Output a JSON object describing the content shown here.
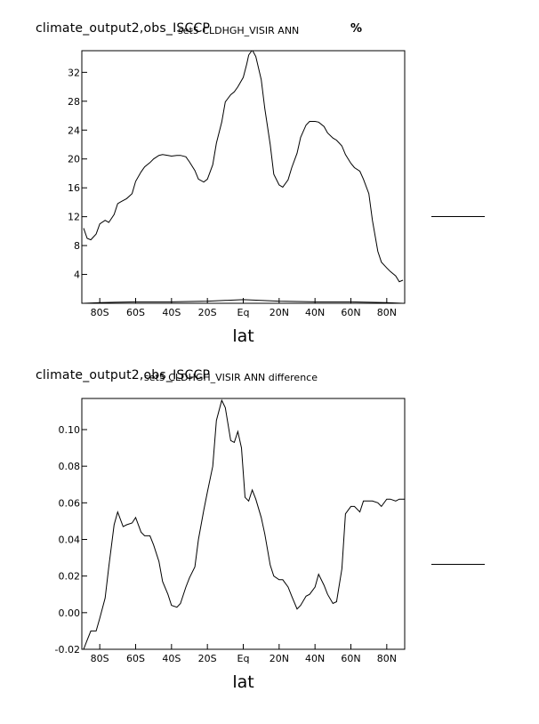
{
  "chart_data": [
    {
      "type": "line",
      "title": "climate_output2,obs_ISCCP",
      "subtitle": "set5 CLDHGH_VISIR ANN",
      "units": "%",
      "xlabel": "lat",
      "ylabel": "",
      "xlim": [
        -90,
        90
      ],
      "ylim": [
        0,
        35
      ],
      "xticks": [
        -80,
        -60,
        -40,
        -20,
        0,
        20,
        40,
        60,
        80
      ],
      "xtick_labels": [
        "80S",
        "60S",
        "40S",
        "20S",
        "Eq",
        "20N",
        "40N",
        "60N",
        "80N"
      ],
      "yticks": [
        4,
        8,
        12,
        16,
        20,
        24,
        28,
        32
      ],
      "ytick_labels": [
        "4",
        "8",
        "12",
        "16",
        "20",
        "24",
        "28",
        "32"
      ],
      "grid": false,
      "series": [
        {
          "name": "",
          "x": [
            -89,
            -87,
            -85,
            -82,
            -80,
            -77,
            -75,
            -72,
            -70,
            -68,
            -65,
            -62,
            -60,
            -57,
            -55,
            -52,
            -50,
            -47,
            -45,
            -42,
            -40,
            -37,
            -35,
            -32,
            -30,
            -27,
            -25,
            -22,
            -20,
            -17,
            -15,
            -12,
            -10,
            -7,
            -5,
            -3,
            0,
            2,
            3,
            5,
            7,
            10,
            12,
            15,
            17,
            20,
            22,
            25,
            27,
            30,
            32,
            35,
            37,
            40,
            42,
            45,
            47,
            50,
            52,
            55,
            57,
            60,
            62,
            65,
            67,
            70,
            72,
            75,
            77,
            80,
            82,
            85,
            87,
            89
          ],
          "y": [
            10.4,
            9.0,
            8.8,
            9.6,
            11.0,
            11.5,
            11.2,
            12.3,
            13.8,
            14.1,
            14.5,
            15.2,
            16.9,
            18.2,
            18.9,
            19.5,
            20.0,
            20.5,
            20.6,
            20.5,
            20.4,
            20.5,
            20.5,
            20.3,
            19.6,
            18.4,
            17.2,
            16.8,
            17.2,
            19.2,
            22.2,
            25.1,
            27.9,
            28.9,
            29.3,
            30.0,
            31.3,
            33.2,
            34.4,
            35.1,
            34.2,
            31.0,
            27.0,
            22.0,
            17.9,
            16.4,
            16.1,
            17.1,
            18.8,
            20.8,
            23.0,
            24.7,
            25.2,
            25.2,
            25.1,
            24.5,
            23.6,
            22.9,
            22.6,
            21.8,
            20.6,
            19.4,
            18.8,
            18.3,
            17.2,
            15.2,
            11.5,
            7.2,
            5.7,
            4.9,
            4.4,
            3.8,
            3.0,
            3.2
          ]
        },
        {
          "name": "",
          "x": [
            -89,
            -80,
            -60,
            -40,
            -20,
            0,
            20,
            40,
            60,
            80,
            89
          ],
          "y": [
            0.0,
            0.1,
            0.2,
            0.2,
            0.3,
            0.5,
            0.3,
            0.2,
            0.2,
            0.1,
            0.0
          ]
        }
      ]
    },
    {
      "type": "line",
      "title": "climate_output2,obs_ISCCP",
      "subtitle": "set5 CLDHGH_VISIR ANN difference",
      "xlabel": "lat",
      "ylabel": "",
      "xlim": [
        -90,
        90
      ],
      "ylim": [
        -0.02,
        0.117
      ],
      "xticks": [
        -80,
        -60,
        -40,
        -20,
        0,
        20,
        40,
        60,
        80
      ],
      "xtick_labels": [
        "80S",
        "60S",
        "40S",
        "20S",
        "Eq",
        "20N",
        "40N",
        "60N",
        "80N"
      ],
      "yticks": [
        -0.02,
        0.0,
        0.02,
        0.04,
        0.06,
        0.08,
        0.1
      ],
      "ytick_labels": [
        "-0.02",
        "0.00",
        "0.02",
        "0.04",
        "0.06",
        "0.08",
        "0.10"
      ],
      "grid": false,
      "series": [
        {
          "name": "",
          "x": [
            -90,
            -89,
            -87,
            -85,
            -82,
            -80,
            -77,
            -75,
            -72,
            -70,
            -67,
            -65,
            -62,
            -60,
            -57,
            -55,
            -52,
            -50,
            -47,
            -45,
            -42,
            -40,
            -37,
            -35,
            -32,
            -30,
            -27,
            -25,
            -22,
            -20,
            -17,
            -15,
            -12,
            -10,
            -7,
            -5,
            -3,
            -1,
            1,
            3,
            5,
            7,
            10,
            12,
            15,
            17,
            20,
            22,
            25,
            27,
            30,
            32,
            35,
            37,
            40,
            42,
            45,
            47,
            50,
            52,
            55,
            57,
            60,
            62,
            65,
            67,
            70,
            72,
            75,
            77,
            80,
            82,
            85,
            87,
            90
          ],
          "y": [
            -0.021,
            -0.02,
            -0.015,
            -0.01,
            -0.01,
            -0.003,
            0.008,
            0.025,
            0.048,
            0.055,
            0.047,
            0.048,
            0.049,
            0.052,
            0.044,
            0.042,
            0.042,
            0.037,
            0.028,
            0.017,
            0.01,
            0.004,
            0.003,
            0.005,
            0.014,
            0.019,
            0.025,
            0.04,
            0.056,
            0.066,
            0.08,
            0.105,
            0.116,
            0.112,
            0.094,
            0.093,
            0.099,
            0.09,
            0.063,
            0.061,
            0.067,
            0.062,
            0.052,
            0.043,
            0.026,
            0.02,
            0.018,
            0.018,
            0.014,
            0.009,
            0.002,
            0.004,
            0.009,
            0.01,
            0.014,
            0.021,
            0.015,
            0.01,
            0.005,
            0.006,
            0.024,
            0.054,
            0.058,
            0.058,
            0.055,
            0.061,
            0.061,
            0.061,
            0.06,
            0.058,
            0.062,
            0.062,
            0.061,
            0.062,
            0.062
          ]
        }
      ]
    }
  ]
}
